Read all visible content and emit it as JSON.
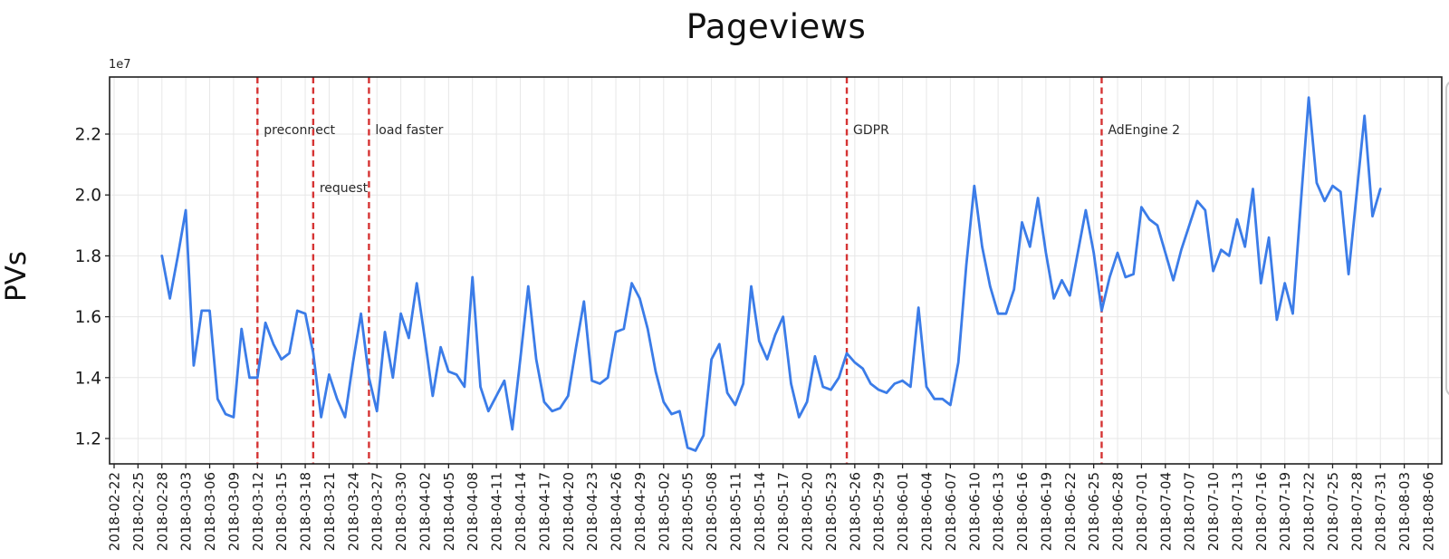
{
  "chart": {
    "type": "line",
    "title": "Pageviews",
    "ylabel": "PVs",
    "offset_label": "1e7",
    "line_color": "#3b7ce8",
    "event_line_color": "#d63434",
    "grid_color": "#e7e7e7",
    "spine_color": "#1f1f1f",
    "ylim_1e7": [
      1.12,
      2.39
    ],
    "x_range": [
      "2018-02-22",
      "2018-08-06"
    ],
    "ytick_values": [
      2.2,
      2.0,
      1.8,
      1.6,
      1.4,
      1.2
    ],
    "ytick_labels": [
      "2.2",
      "2.0",
      "1.8",
      "1.6",
      "1.4",
      "1.2"
    ],
    "xtick_labels": [
      "2018-02-22",
      "2018-02-25",
      "2018-02-28",
      "2018-03-03",
      "2018-03-06",
      "2018-03-09",
      "2018-03-12",
      "2018-03-15",
      "2018-03-18",
      "2018-03-21",
      "2018-03-24",
      "2018-03-27",
      "2018-03-30",
      "2018-04-02",
      "2018-04-05",
      "2018-04-08",
      "2018-04-11",
      "2018-04-14",
      "2018-04-17",
      "2018-04-20",
      "2018-04-23",
      "2018-04-26",
      "2018-04-29",
      "2018-05-02",
      "2018-05-05",
      "2018-05-08",
      "2018-05-11",
      "2018-05-14",
      "2018-05-17",
      "2018-05-20",
      "2018-05-23",
      "2018-05-26",
      "2018-05-29",
      "2018-06-01",
      "2018-06-04",
      "2018-06-07",
      "2018-06-10",
      "2018-06-13",
      "2018-06-16",
      "2018-06-19",
      "2018-06-22",
      "2018-06-25",
      "2018-06-28",
      "2018-07-01",
      "2018-07-04",
      "2018-07-07",
      "2018-07-10",
      "2018-07-13",
      "2018-07-16",
      "2018-07-19",
      "2018-07-22",
      "2018-07-25",
      "2018-07-28",
      "2018-07-31",
      "2018-08-03",
      "2018-08-06"
    ],
    "events": [
      {
        "label": "preconnect",
        "date": "2018-03-12",
        "row": "top"
      },
      {
        "label": "request",
        "date": "2018-03-19",
        "row": "low"
      },
      {
        "label": "load faster",
        "date": "2018-03-26",
        "row": "top"
      },
      {
        "label": "GDPR",
        "date": "2018-05-25",
        "row": "top"
      },
      {
        "label": "AdEngine 2",
        "date": "2018-06-26",
        "row": "top"
      }
    ],
    "series": {
      "name": "PVs",
      "unit": "1e7",
      "start_date": "2018-02-28",
      "freq": "daily",
      "values_1e7": [
        1.8,
        1.66,
        1.8,
        1.95,
        1.44,
        1.62,
        1.62,
        1.33,
        1.28,
        1.27,
        1.56,
        1.4,
        1.4,
        1.58,
        1.51,
        1.46,
        1.48,
        1.62,
        1.61,
        1.48,
        1.27,
        1.41,
        1.33,
        1.27,
        1.45,
        1.61,
        1.4,
        1.29,
        1.55,
        1.4,
        1.61,
        1.53,
        1.71,
        1.53,
        1.34,
        1.5,
        1.42,
        1.41,
        1.37,
        1.73,
        1.37,
        1.29,
        1.34,
        1.39,
        1.23,
        1.46,
        1.7,
        1.46,
        1.32,
        1.29,
        1.3,
        1.34,
        1.5,
        1.65,
        1.39,
        1.38,
        1.4,
        1.55,
        1.56,
        1.71,
        1.66,
        1.56,
        1.42,
        1.32,
        1.28,
        1.29,
        1.17,
        1.16,
        1.21,
        1.46,
        1.51,
        1.35,
        1.31,
        1.38,
        1.7,
        1.52,
        1.46,
        1.54,
        1.6,
        1.38,
        1.27,
        1.32,
        1.47,
        1.37,
        1.36,
        1.4,
        1.48,
        1.45,
        1.43,
        1.38,
        1.36,
        1.35,
        1.38,
        1.39,
        1.37,
        1.63,
        1.37,
        1.33,
        1.33,
        1.31,
        1.45,
        1.77,
        2.03,
        1.83,
        1.7,
        1.61,
        1.61,
        1.69,
        1.91,
        1.83,
        1.99,
        1.81,
        1.66,
        1.72,
        1.67,
        1.81,
        1.95,
        1.81,
        1.62,
        1.73,
        1.81,
        1.73,
        1.74,
        1.96,
        1.92,
        1.9,
        1.81,
        1.72,
        1.82,
        1.9,
        1.98,
        1.95,
        1.75,
        1.82,
        1.8,
        1.92,
        1.83,
        2.02,
        1.71,
        1.86,
        1.59,
        1.71,
        1.61,
        1.97,
        2.32,
        2.04,
        1.98,
        2.03,
        2.01,
        1.74,
        2.0,
        2.26,
        1.93,
        2.02
      ]
    }
  }
}
